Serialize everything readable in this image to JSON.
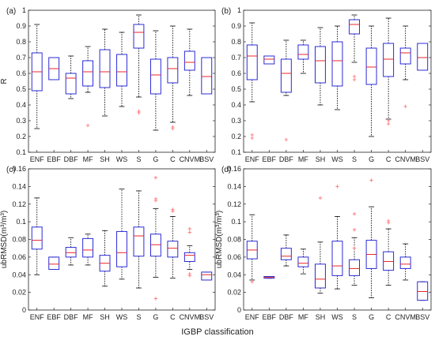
{
  "figure": {
    "xlabel": "IGBP classification"
  },
  "chart_data": [
    {
      "type": "box",
      "panel_label": "(a)",
      "ylabel": "R",
      "ylim": [
        0.1,
        1.0
      ],
      "yticks": [
        "0.1",
        "0.2",
        "0.3",
        "0.4",
        "0.5",
        "0.6",
        "0.7",
        "0.8",
        "0.9",
        "1"
      ],
      "categories": [
        "ENF",
        "EBF",
        "DBF",
        "MF",
        "SH",
        "WS",
        "S",
        "G",
        "C",
        "CNVM",
        "BSV"
      ],
      "boxes": [
        {
          "category": "ENF",
          "whisker_low": 0.25,
          "q1": 0.49,
          "median": 0.61,
          "q3": 0.73,
          "whisker_high": 0.91,
          "outliers": []
        },
        {
          "category": "EBF",
          "whisker_low": 0.56,
          "q1": 0.56,
          "median": 0.63,
          "q3": 0.7,
          "whisker_high": 0.7,
          "outliers": []
        },
        {
          "category": "DBF",
          "whisker_low": 0.44,
          "q1": 0.47,
          "median": 0.57,
          "q3": 0.6,
          "whisker_high": 0.71,
          "outliers": []
        },
        {
          "category": "MF",
          "whisker_low": 0.48,
          "q1": 0.52,
          "median": 0.61,
          "q3": 0.68,
          "whisker_high": 0.77,
          "outliers": [
            0.27
          ]
        },
        {
          "category": "SH",
          "whisker_low": 0.33,
          "q1": 0.51,
          "median": 0.61,
          "q3": 0.75,
          "whisker_high": 0.88,
          "outliers": []
        },
        {
          "category": "WS",
          "whisker_low": 0.39,
          "q1": 0.52,
          "median": 0.61,
          "q3": 0.72,
          "whisker_high": 0.86,
          "outliers": []
        },
        {
          "category": "S",
          "whisker_low": 0.45,
          "q1": 0.76,
          "median": 0.86,
          "q3": 0.91,
          "whisker_high": 0.97,
          "outliers": [
            0.35,
            0.36
          ]
        },
        {
          "category": "G",
          "whisker_low": 0.24,
          "q1": 0.47,
          "median": 0.59,
          "q3": 0.69,
          "whisker_high": 0.87,
          "outliers": []
        },
        {
          "category": "C",
          "whisker_low": 0.29,
          "q1": 0.54,
          "median": 0.63,
          "q3": 0.7,
          "whisker_high": 0.9,
          "outliers": [
            0.25,
            0.26
          ]
        },
        {
          "category": "CNVM",
          "whisker_low": 0.46,
          "q1": 0.62,
          "median": 0.67,
          "q3": 0.74,
          "whisker_high": 0.88,
          "outliers": []
        },
        {
          "category": "BSV",
          "whisker_low": 0.47,
          "q1": 0.47,
          "median": 0.58,
          "q3": 0.7,
          "whisker_high": 0.7,
          "outliers": []
        }
      ]
    },
    {
      "type": "box",
      "panel_label": "(b)",
      "ylabel": "",
      "ylim": [
        0.1,
        1.0
      ],
      "yticks": [
        "0.1",
        "0.2",
        "0.3",
        "0.4",
        "0.5",
        "0.6",
        "0.7",
        "0.8",
        "0.9",
        "1"
      ],
      "categories": [
        "ENF",
        "EBF",
        "DBF",
        "MF",
        "SH",
        "WS",
        "S",
        "G",
        "C",
        "CNVM",
        "BSV"
      ],
      "boxes": [
        {
          "category": "ENF",
          "whisker_low": 0.42,
          "q1": 0.56,
          "median": 0.71,
          "q3": 0.78,
          "whisker_high": 0.92,
          "outliers": [
            0.19,
            0.21
          ]
        },
        {
          "category": "EBF",
          "whisker_low": 0.66,
          "q1": 0.66,
          "median": 0.69,
          "q3": 0.71,
          "whisker_high": 0.71,
          "outliers": []
        },
        {
          "category": "DBF",
          "whisker_low": 0.46,
          "q1": 0.48,
          "median": 0.6,
          "q3": 0.69,
          "whisker_high": 0.81,
          "outliers": [
            0.18
          ]
        },
        {
          "category": "MF",
          "whisker_low": 0.6,
          "q1": 0.69,
          "median": 0.72,
          "q3": 0.78,
          "whisker_high": 0.81,
          "outliers": []
        },
        {
          "category": "SH",
          "whisker_low": 0.4,
          "q1": 0.54,
          "median": 0.68,
          "q3": 0.77,
          "whisker_high": 0.89,
          "outliers": []
        },
        {
          "category": "WS",
          "whisker_low": 0.37,
          "q1": 0.52,
          "median": 0.68,
          "q3": 0.8,
          "whisker_high": 0.9,
          "outliers": []
        },
        {
          "category": "S",
          "whisker_low": 0.67,
          "q1": 0.85,
          "median": 0.91,
          "q3": 0.94,
          "whisker_high": 0.97,
          "outliers": [
            0.56,
            0.58
          ]
        },
        {
          "category": "G",
          "whisker_low": 0.2,
          "q1": 0.53,
          "median": 0.64,
          "q3": 0.76,
          "whisker_high": 0.9,
          "outliers": []
        },
        {
          "category": "C",
          "whisker_low": 0.31,
          "q1": 0.58,
          "median": 0.69,
          "q3": 0.79,
          "whisker_high": 0.95,
          "outliers": [
            0.28,
            0.3
          ]
        },
        {
          "category": "CNVM",
          "whisker_low": 0.56,
          "q1": 0.66,
          "median": 0.73,
          "q3": 0.76,
          "whisker_high": 0.9,
          "outliers": [
            0.39
          ]
        },
        {
          "category": "BSV",
          "whisker_low": 0.62,
          "q1": 0.62,
          "median": 0.7,
          "q3": 0.79,
          "whisker_high": 0.79,
          "outliers": []
        }
      ]
    },
    {
      "type": "box",
      "panel_label": "(c)",
      "ylabel": "ubRMSD(m³/m³)",
      "ylim": [
        0,
        0.16
      ],
      "yticks": [
        "0",
        "0.02",
        "0.04",
        "0.06",
        "0.08",
        "0.1",
        "0.12",
        "0.14",
        "0.16"
      ],
      "categories": [
        "ENF",
        "EBF",
        "DBF",
        "MF",
        "SH",
        "WS",
        "S",
        "G",
        "C",
        "CNVM",
        "BSV"
      ],
      "boxes": [
        {
          "category": "ENF",
          "whisker_low": 0.04,
          "q1": 0.069,
          "median": 0.079,
          "q3": 0.094,
          "whisker_high": 0.127,
          "outliers": []
        },
        {
          "category": "EBF",
          "whisker_low": 0.046,
          "q1": 0.046,
          "median": 0.052,
          "q3": 0.06,
          "whisker_high": 0.06,
          "outliers": []
        },
        {
          "category": "DBF",
          "whisker_low": 0.051,
          "q1": 0.06,
          "median": 0.065,
          "q3": 0.071,
          "whisker_high": 0.082,
          "outliers": []
        },
        {
          "category": "MF",
          "whisker_low": 0.051,
          "q1": 0.06,
          "median": 0.068,
          "q3": 0.081,
          "whisker_high": 0.086,
          "outliers": []
        },
        {
          "category": "SH",
          "whisker_low": 0.027,
          "q1": 0.044,
          "median": 0.053,
          "q3": 0.062,
          "whisker_high": 0.09,
          "outliers": []
        },
        {
          "category": "WS",
          "whisker_low": 0.035,
          "q1": 0.049,
          "median": 0.065,
          "q3": 0.089,
          "whisker_high": 0.137,
          "outliers": []
        },
        {
          "category": "S",
          "whisker_low": 0.025,
          "q1": 0.061,
          "median": 0.084,
          "q3": 0.094,
          "whisker_high": 0.135,
          "outliers": []
        },
        {
          "category": "G",
          "whisker_low": 0.037,
          "q1": 0.061,
          "median": 0.074,
          "q3": 0.086,
          "whisker_high": 0.115,
          "outliers": [
            0.15,
            0.126,
            0.124,
            0.013
          ]
        },
        {
          "category": "C",
          "whisker_low": 0.036,
          "q1": 0.06,
          "median": 0.07,
          "q3": 0.078,
          "whisker_high": 0.106,
          "outliers": [
            0.114,
            0.112
          ]
        },
        {
          "category": "CNVM",
          "whisker_low": 0.046,
          "q1": 0.055,
          "median": 0.062,
          "q3": 0.065,
          "whisker_high": 0.073,
          "outliers": [
            0.092,
            0.088,
            0.041,
            0.039
          ]
        },
        {
          "category": "BSV",
          "whisker_low": 0.034,
          "q1": 0.034,
          "median": 0.04,
          "q3": 0.043,
          "whisker_high": 0.043,
          "outliers": []
        }
      ]
    },
    {
      "type": "box",
      "panel_label": "(d)",
      "ylabel": "ubRMSD(m³/m³)",
      "ylim": [
        0,
        0.16
      ],
      "yticks": [
        "0",
        "0.02",
        "0.04",
        "0.06",
        "0.08",
        "0.1",
        "0.12",
        "0.14",
        "0.16"
      ],
      "categories": [
        "ENF",
        "EBF",
        "DBF",
        "MF",
        "SH",
        "WS",
        "S",
        "G",
        "C",
        "CNVM",
        "BSV"
      ],
      "boxes": [
        {
          "category": "ENF",
          "whisker_low": 0.034,
          "q1": 0.058,
          "median": 0.068,
          "q3": 0.078,
          "whisker_high": 0.108,
          "outliers": [
            0.032
          ]
        },
        {
          "category": "EBF",
          "whisker_low": 0.036,
          "q1": 0.036,
          "median": 0.037,
          "q3": 0.038,
          "whisker_high": 0.038,
          "outliers": []
        },
        {
          "category": "DBF",
          "whisker_low": 0.05,
          "q1": 0.057,
          "median": 0.061,
          "q3": 0.07,
          "whisker_high": 0.085,
          "outliers": []
        },
        {
          "category": "MF",
          "whisker_low": 0.041,
          "q1": 0.049,
          "median": 0.053,
          "q3": 0.06,
          "whisker_high": 0.069,
          "outliers": []
        },
        {
          "category": "SH",
          "whisker_low": 0.019,
          "q1": 0.025,
          "median": 0.035,
          "q3": 0.052,
          "whisker_high": 0.077,
          "outliers": [
            0.127
          ]
        },
        {
          "category": "WS",
          "whisker_low": 0.024,
          "q1": 0.039,
          "median": 0.05,
          "q3": 0.078,
          "whisker_high": 0.106,
          "outliers": [
            0.14
          ]
        },
        {
          "category": "S",
          "whisker_low": 0.028,
          "q1": 0.039,
          "median": 0.047,
          "q3": 0.057,
          "whisker_high": 0.082,
          "outliers": [
            0.109,
            0.091,
            0.07
          ]
        },
        {
          "category": "G",
          "whisker_low": 0.014,
          "q1": 0.047,
          "median": 0.063,
          "q3": 0.079,
          "whisker_high": 0.117,
          "outliers": [
            0.147
          ]
        },
        {
          "category": "C",
          "whisker_low": 0.028,
          "q1": 0.045,
          "median": 0.055,
          "q3": 0.066,
          "whisker_high": 0.092,
          "outliers": [
            0.101,
            0.099
          ]
        },
        {
          "category": "CNVM",
          "whisker_low": 0.034,
          "q1": 0.047,
          "median": 0.052,
          "q3": 0.06,
          "whisker_high": 0.075,
          "outliers": []
        },
        {
          "category": "BSV",
          "whisker_low": 0.011,
          "q1": 0.011,
          "median": 0.021,
          "q3": 0.032,
          "whisker_high": 0.032,
          "outliers": []
        }
      ]
    }
  ]
}
